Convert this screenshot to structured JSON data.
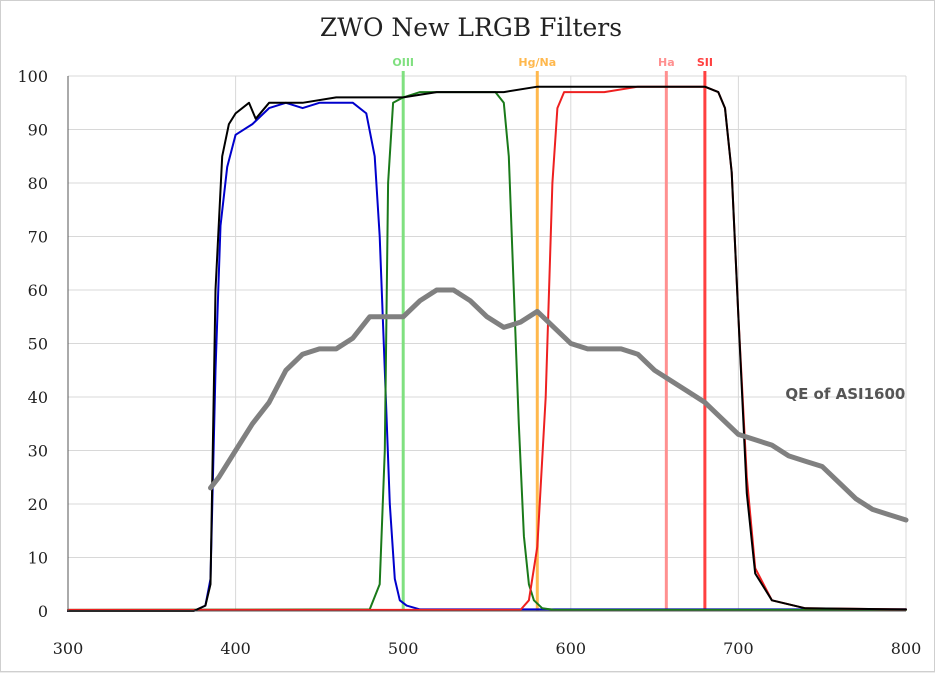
{
  "chart_data": {
    "type": "line",
    "title": "ZWO New LRGB Filters",
    "xlabel": "",
    "ylabel": "",
    "xlim": [
      300,
      800
    ],
    "ylim": [
      0,
      100
    ],
    "xticks": [
      300,
      400,
      500,
      600,
      700,
      800
    ],
    "yticks": [
      0,
      10,
      20,
      30,
      40,
      50,
      60,
      70,
      80,
      90,
      100
    ],
    "grid": true,
    "series": [
      {
        "color": "#0000cc",
        "x": [
          300,
          375,
          382,
          385,
          388,
          391,
          395,
          400,
          410,
          420,
          430,
          440,
          450,
          460,
          470,
          478,
          483,
          486,
          489,
          492,
          495,
          498,
          502,
          510,
          800
        ],
        "y": [
          0,
          0,
          1,
          6,
          45,
          72,
          83,
          89,
          91,
          94,
          95,
          94,
          95,
          95,
          95,
          93,
          85,
          70,
          45,
          20,
          6,
          2,
          1,
          0.3,
          0.3
        ]
      },
      {
        "color": "#1a7a1a",
        "x": [
          300,
          480,
          486,
          489,
          491,
          494,
          500,
          510,
          520,
          540,
          555,
          560,
          563,
          566,
          569,
          572,
          575,
          578,
          583,
          590,
          800
        ],
        "y": [
          0.2,
          0.3,
          5,
          30,
          80,
          95,
          96,
          97,
          97,
          97,
          97,
          95,
          85,
          60,
          35,
          14,
          5,
          2,
          0.5,
          0.2,
          0.2
        ]
      },
      {
        "color": "#ee2020",
        "x": [
          300,
          570,
          575,
          580,
          585,
          589,
          592,
          596,
          600,
          620,
          640,
          660,
          680,
          688,
          692,
          696,
          700,
          705,
          710,
          720,
          740,
          800
        ],
        "y": [
          0.2,
          0.2,
          2,
          12,
          40,
          80,
          94,
          97,
          97,
          97,
          98,
          98,
          98,
          97,
          94,
          82,
          55,
          25,
          8,
          2,
          0.5,
          0.3
        ]
      },
      {
        "color": "#000000",
        "x": [
          300,
          375,
          382,
          385,
          388,
          392,
          396,
          400,
          408,
          412,
          420,
          440,
          460,
          480,
          500,
          520,
          540,
          560,
          580,
          600,
          620,
          640,
          660,
          680,
          688,
          692,
          696,
          700,
          705,
          710,
          720,
          740,
          800
        ],
        "y": [
          0,
          0,
          1,
          5,
          60,
          85,
          91,
          93,
          95,
          92,
          95,
          95,
          96,
          96,
          96,
          97,
          97,
          97,
          98,
          98,
          98,
          98,
          98,
          98,
          97,
          94,
          82,
          55,
          22,
          7,
          2,
          0.5,
          0.3
        ]
      },
      {
        "name": "QE of ASI1600",
        "color": "#808080",
        "x": [
          385,
          390,
          400,
          410,
          420,
          430,
          440,
          450,
          460,
          470,
          480,
          490,
          500,
          510,
          520,
          530,
          540,
          550,
          560,
          570,
          580,
          590,
          600,
          610,
          620,
          630,
          640,
          650,
          660,
          670,
          680,
          690,
          700,
          710,
          720,
          730,
          740,
          750,
          760,
          770,
          780,
          790,
          800
        ],
        "y": [
          23,
          25,
          30,
          35,
          39,
          45,
          48,
          49,
          49,
          51,
          55,
          55,
          55,
          58,
          60,
          60,
          58,
          55,
          53,
          54,
          56,
          53,
          50,
          49,
          49,
          49,
          48,
          45,
          43,
          41,
          39,
          36,
          33,
          32,
          31,
          29,
          28,
          27,
          24,
          21,
          19,
          18,
          17
        ]
      }
    ],
    "vlines": [
      {
        "x": 500,
        "label": "OIII",
        "color": "#80e080"
      },
      {
        "x": 580,
        "label": "Hg/Na",
        "color": "#ffb84d"
      },
      {
        "x": 657,
        "label": "Ha",
        "color": "#ff9090"
      },
      {
        "x": 680,
        "label": "SII",
        "color": "#ff4040"
      }
    ],
    "annotations": [
      {
        "text": "QE of ASI1600",
        "x": 728,
        "y": 35
      }
    ]
  }
}
